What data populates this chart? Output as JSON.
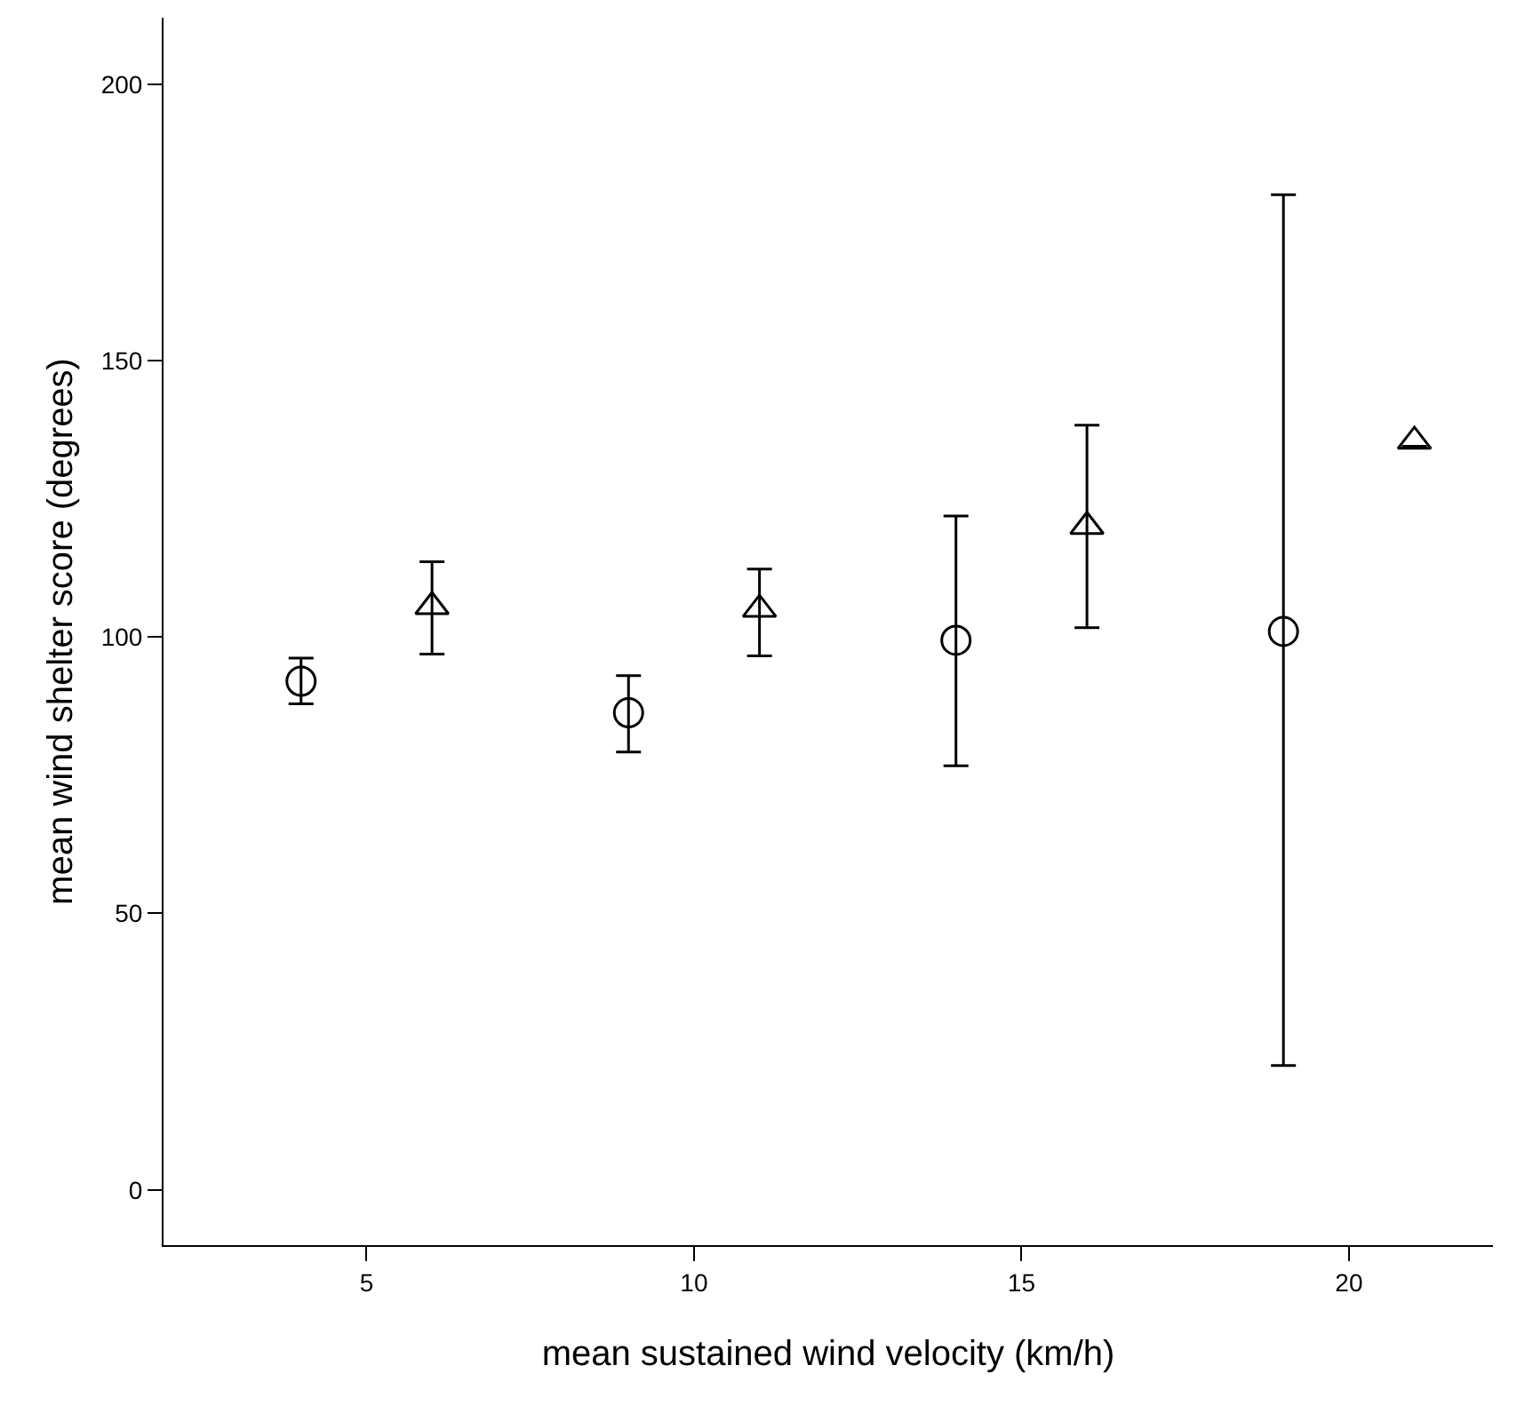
{
  "chart_data": {
    "type": "scatter",
    "xlabel": "mean sustained wind velocity (km/h)",
    "ylabel": "mean wind shelter score (degrees)",
    "xlim": [
      1.9,
      22.2
    ],
    "xticks": [
      5,
      10,
      15,
      20
    ],
    "ylim": [
      -10,
      212
    ],
    "yticks": [
      0,
      50,
      100,
      150,
      200
    ],
    "series": [
      {
        "color": "#000000",
        "marker": "circle",
        "x": [
          4,
          9,
          14,
          19
        ],
        "values": [
          92,
          86.3,
          99.4,
          101
        ],
        "errors": [
          [
            87.9,
            96.2
          ],
          [
            79.2,
            93
          ],
          [
            76.7,
            121.9
          ],
          [
            22.5,
            180
          ]
        ]
      },
      {
        "color": "#000000",
        "marker": "triangle",
        "x": [
          6,
          11,
          16,
          21
        ],
        "values": [
          105.5,
          105,
          120,
          135.4
        ],
        "errors": [
          [
            96.9,
            113.6
          ],
          [
            96.6,
            112.3
          ],
          [
            101.7,
            138.3
          ],
          [
            134.5,
            134.5
          ]
        ]
      }
    ]
  }
}
